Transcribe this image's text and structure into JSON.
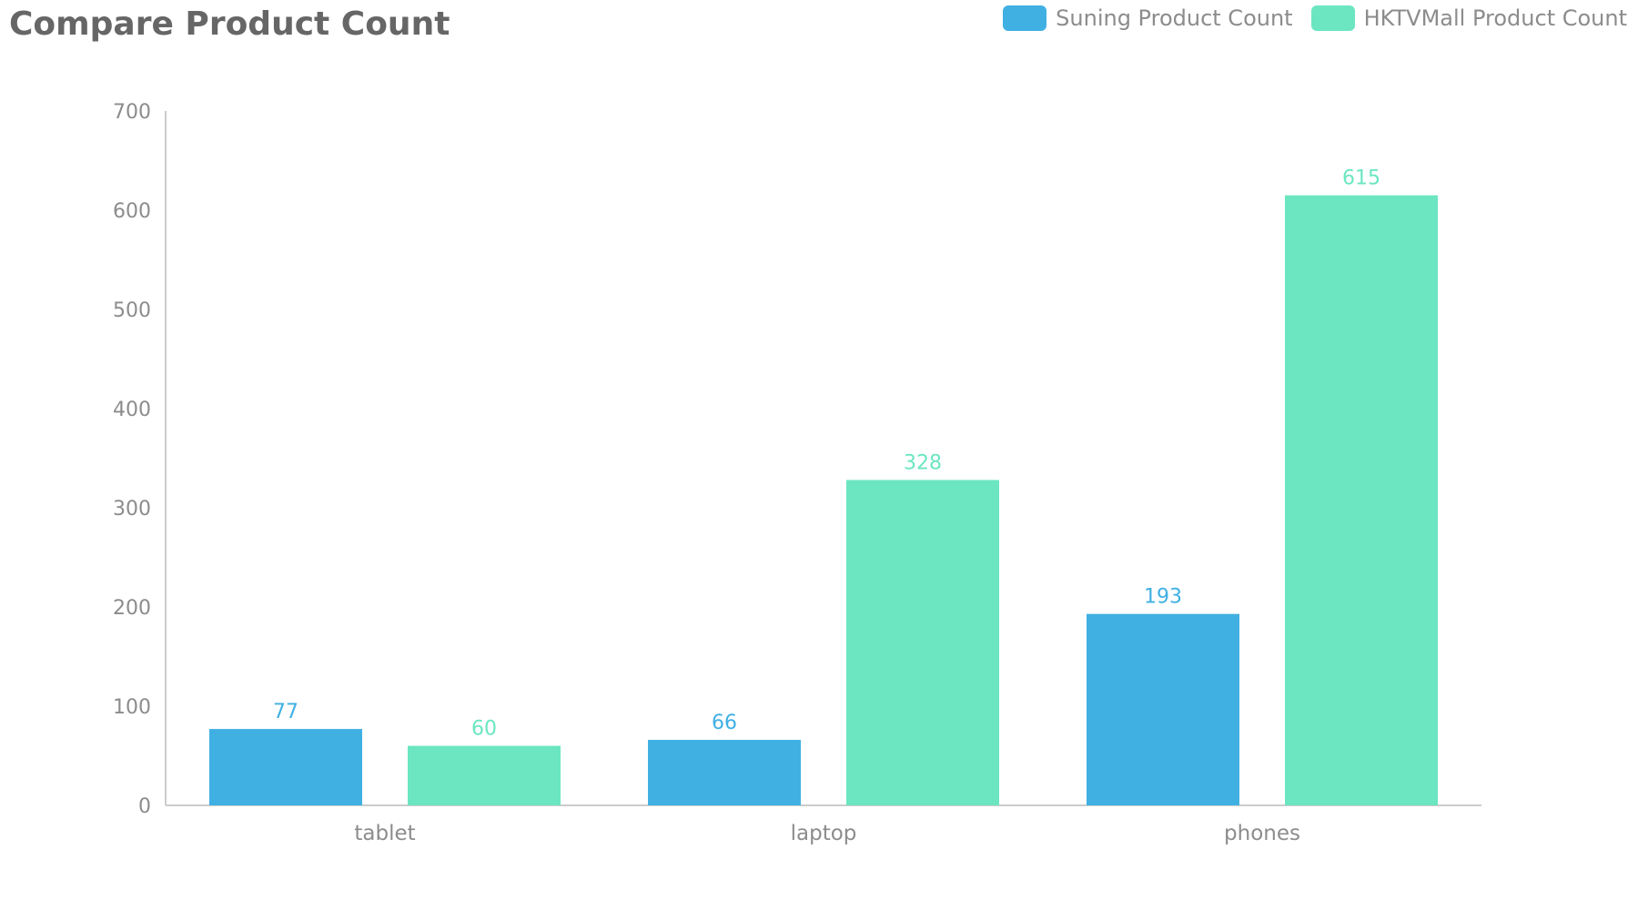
{
  "chart_data": {
    "type": "bar",
    "title": "Compare Product Count",
    "categories": [
      "tablet",
      "laptop",
      "phones"
    ],
    "series": [
      {
        "name": "Suning Product Count",
        "values": [
          77,
          66,
          193
        ],
        "color": "#40b0e3"
      },
      {
        "name": "HKTVMall Product Count",
        "values": [
          60,
          328,
          615
        ],
        "color": "#6be6c1"
      }
    ],
    "ylim": [
      0,
      700
    ],
    "yticks": [
      0,
      100,
      200,
      300,
      400,
      500,
      600,
      700
    ],
    "grid": false,
    "legend_position": "top-right",
    "xlabel": "",
    "ylabel": ""
  }
}
